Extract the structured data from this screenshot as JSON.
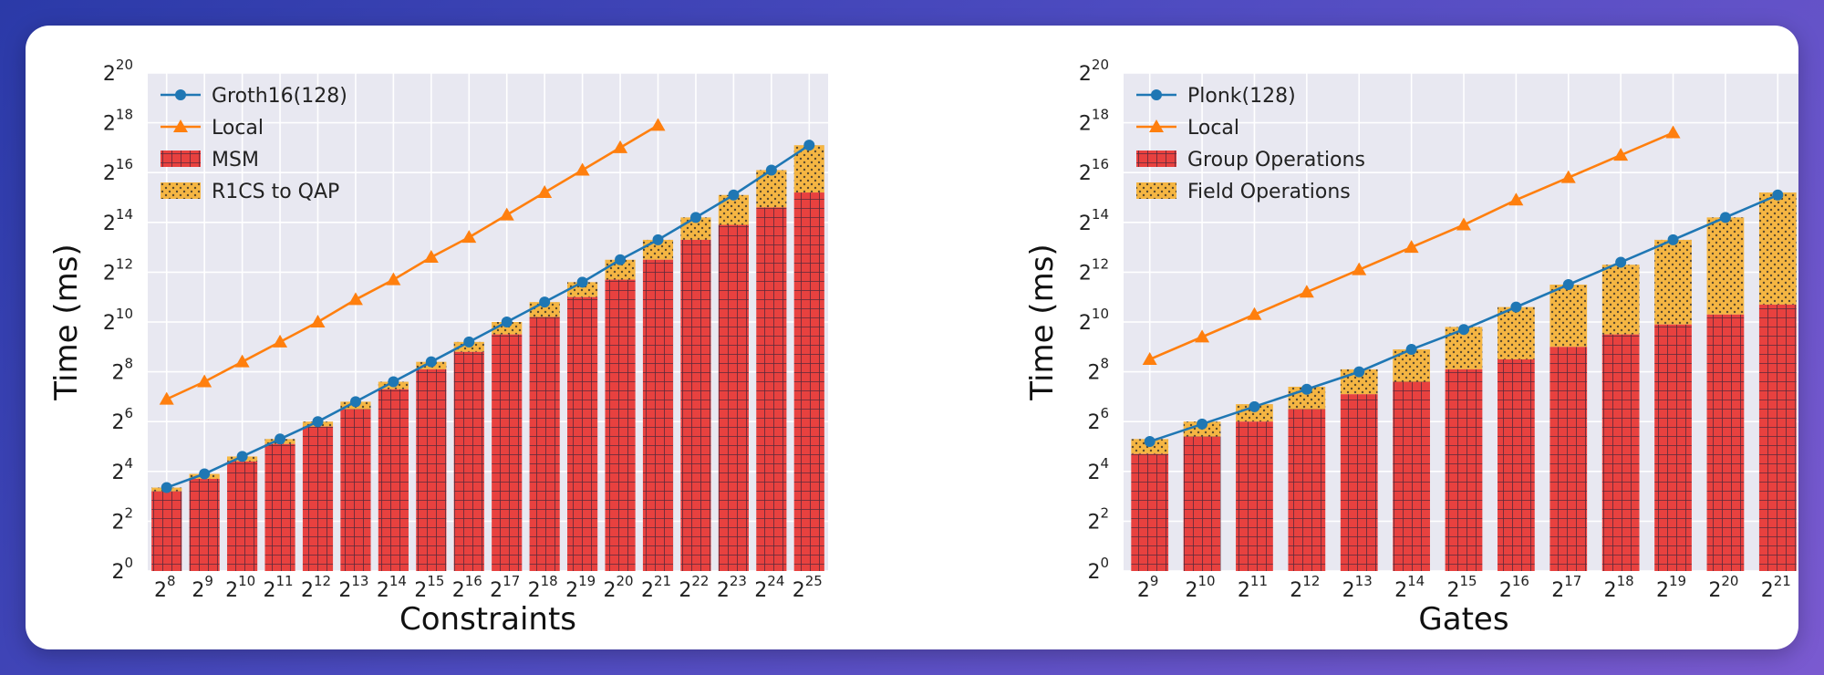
{
  "colors": {
    "line": "#1f77b4",
    "local": "#ff7f0e",
    "bar_bottom": "#e8413f",
    "bar_top": "#f5b643",
    "plot_bg": "#e8e8f1"
  },
  "chart_data": [
    {
      "type": "bar",
      "stacked": true,
      "title": "",
      "xlabel": "Constraints",
      "ylabel": "Time (ms)",
      "ylim_log2": [
        0,
        20
      ],
      "ytick_exponents": [
        0,
        2,
        4,
        6,
        8,
        10,
        12,
        14,
        16,
        18,
        20
      ],
      "categories_log2": [
        8,
        9,
        10,
        11,
        12,
        13,
        14,
        15,
        16,
        17,
        18,
        19,
        20,
        21,
        22,
        23,
        24,
        25
      ],
      "legend": [
        "Groth16(128)",
        "Local",
        "MSM",
        "R1CS to QAP"
      ],
      "series": [
        {
          "name": "MSM",
          "kind": "bar",
          "log2_values": [
            3.2,
            3.7,
            4.4,
            5.1,
            5.8,
            6.5,
            7.3,
            8.1,
            8.8,
            9.5,
            10.2,
            11.0,
            11.7,
            12.5,
            13.3,
            13.9,
            14.6,
            15.2
          ]
        },
        {
          "name": "R1CS to QAP",
          "kind": "bar",
          "log2_values": [
            3.35,
            3.9,
            4.6,
            5.3,
            6.0,
            6.8,
            7.6,
            8.4,
            9.2,
            10.0,
            10.8,
            11.6,
            12.5,
            13.3,
            14.2,
            15.1,
            16.1,
            17.1
          ]
        },
        {
          "name": "Groth16(128)",
          "kind": "line",
          "log2_values": [
            3.35,
            3.9,
            4.6,
            5.3,
            6.0,
            6.8,
            7.6,
            8.4,
            9.2,
            10.0,
            10.8,
            11.6,
            12.5,
            13.3,
            14.2,
            15.1,
            16.1,
            17.1
          ]
        },
        {
          "name": "Local",
          "kind": "line",
          "log2_values": [
            6.9,
            7.6,
            8.4,
            9.2,
            10.0,
            10.9,
            11.7,
            12.6,
            13.4,
            14.3,
            15.2,
            16.1,
            17.0,
            17.9
          ]
        }
      ]
    },
    {
      "type": "bar",
      "stacked": true,
      "title": "",
      "xlabel": "Gates",
      "ylabel": "Time (ms)",
      "ylim_log2": [
        0,
        20
      ],
      "ytick_exponents": [
        0,
        2,
        4,
        6,
        8,
        10,
        12,
        14,
        16,
        18,
        20
      ],
      "categories_log2": [
        9,
        10,
        11,
        12,
        13,
        14,
        15,
        16,
        17,
        18,
        19,
        20,
        21
      ],
      "legend": [
        "Plonk(128)",
        "Local",
        "Group Operations",
        "Field Operations"
      ],
      "series": [
        {
          "name": "Group Operations",
          "kind": "bar",
          "log2_values": [
            4.7,
            5.4,
            6.0,
            6.5,
            7.1,
            7.6,
            8.1,
            8.5,
            9.0,
            9.5,
            9.9,
            10.3,
            10.7
          ]
        },
        {
          "name": "Field Operations",
          "kind": "bar",
          "log2_values": [
            5.3,
            6.0,
            6.7,
            7.4,
            8.1,
            8.9,
            9.8,
            10.6,
            11.5,
            12.3,
            13.3,
            14.2,
            15.2
          ]
        },
        {
          "name": "Plonk(128)",
          "kind": "line",
          "log2_values": [
            5.2,
            5.9,
            6.6,
            7.3,
            8.0,
            8.9,
            9.7,
            10.6,
            11.5,
            12.4,
            13.3,
            14.2,
            15.1
          ]
        },
        {
          "name": "Local",
          "kind": "line",
          "log2_values": [
            8.5,
            9.4,
            10.3,
            11.2,
            12.1,
            13.0,
            13.9,
            14.9,
            15.8,
            16.7,
            17.6
          ]
        }
      ]
    }
  ]
}
